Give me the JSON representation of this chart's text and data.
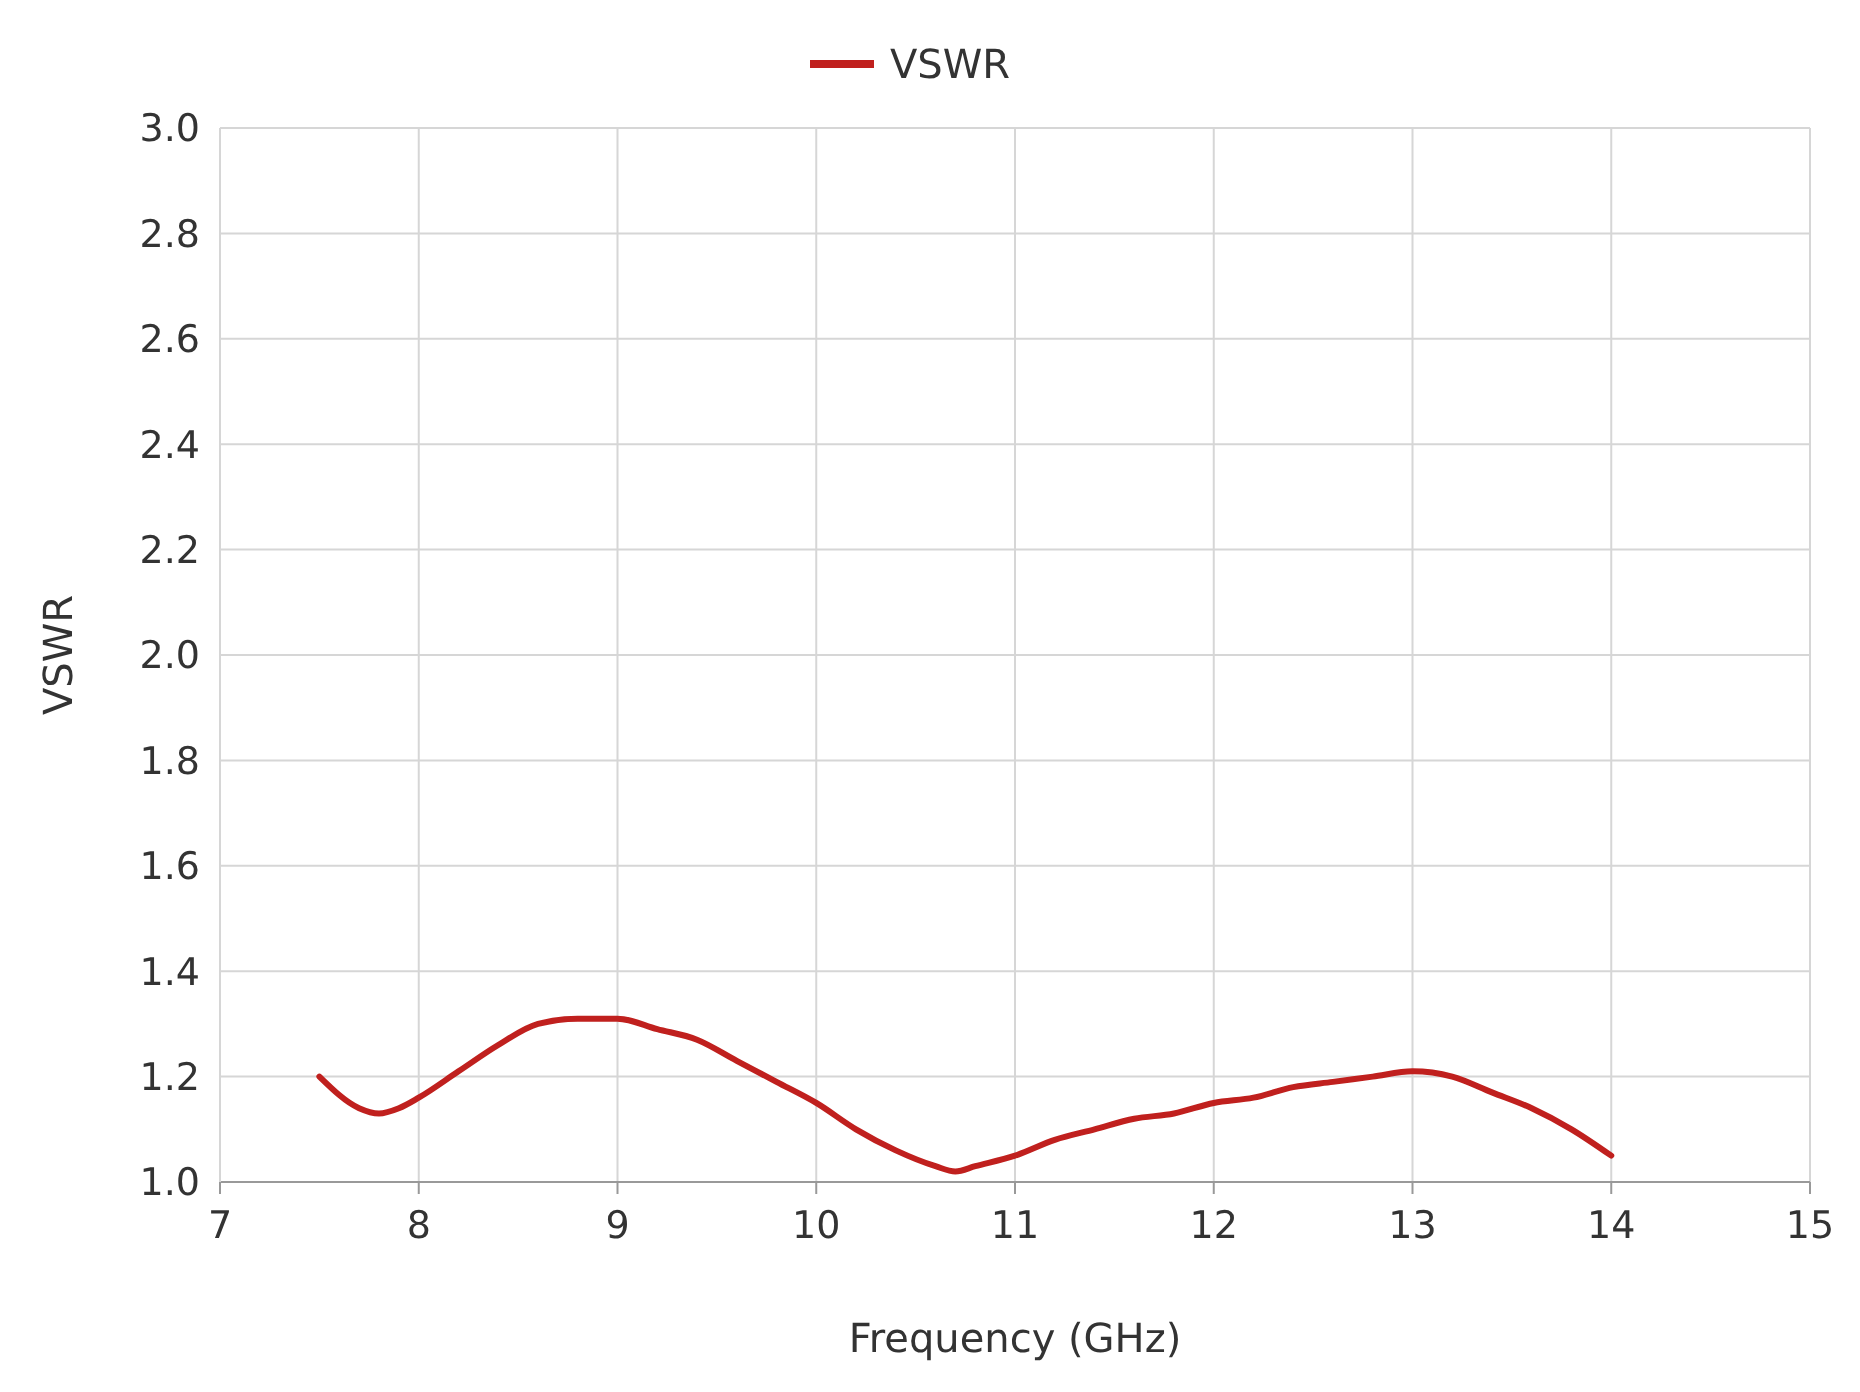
{
  "chart_data": {
    "type": "line",
    "xlabel": "Frequency (GHz)",
    "ylabel": "VSWR",
    "x": [
      7.5,
      7.7,
      7.8,
      7.9,
      8.0,
      8.2,
      8.4,
      8.6,
      8.8,
      9.0,
      9.2,
      9.4,
      9.6,
      9.8,
      10.0,
      10.2,
      10.4,
      10.6,
      10.7,
      10.8,
      11.0,
      11.2,
      11.4,
      11.6,
      11.8,
      12.0,
      12.2,
      12.4,
      12.6,
      12.8,
      13.0,
      13.2,
      13.4,
      13.6,
      13.8,
      14.0
    ],
    "series": [
      {
        "name": "VSWR",
        "color": "#c0201e",
        "values": [
          1.2,
          1.14,
          1.13,
          1.14,
          1.16,
          1.21,
          1.26,
          1.3,
          1.31,
          1.31,
          1.29,
          1.27,
          1.23,
          1.19,
          1.15,
          1.1,
          1.06,
          1.03,
          1.02,
          1.03,
          1.05,
          1.08,
          1.1,
          1.12,
          1.13,
          1.15,
          1.16,
          1.18,
          1.19,
          1.2,
          1.21,
          1.2,
          1.17,
          1.14,
          1.1,
          1.05
        ]
      }
    ],
    "xlim": [
      7,
      15
    ],
    "xticks": [
      7,
      8,
      9,
      10,
      11,
      12,
      13,
      14,
      15
    ],
    "ylim": [
      1.0,
      3.0
    ],
    "yticks": [
      {
        "value": 1.0,
        "label": "1.0"
      },
      {
        "value": 1.2,
        "label": "1.2"
      },
      {
        "value": 1.4,
        "label": "1.4"
      },
      {
        "value": 1.6,
        "label": "1.6"
      },
      {
        "value": 1.8,
        "label": "1.8"
      },
      {
        "value": 2.0,
        "label": "2.0"
      },
      {
        "value": 2.2,
        "label": "2.2"
      },
      {
        "value": 2.4,
        "label": "2.4"
      },
      {
        "value": 2.6,
        "label": "2.6"
      },
      {
        "value": 2.8,
        "label": "2.8"
      },
      {
        "value": 3.0,
        "label": "3.0"
      }
    ],
    "grid": true,
    "legend": "top",
    "marker": "none",
    "line_style": "solid"
  }
}
